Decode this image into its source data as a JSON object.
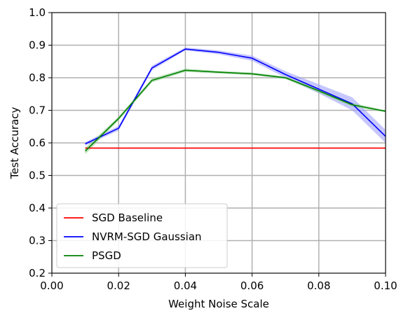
{
  "chart_data": {
    "type": "line",
    "title": "",
    "xlabel": "Weight Noise Scale",
    "ylabel": "Test Accuracy",
    "xlim": [
      0.0,
      0.1
    ],
    "ylim": [
      0.2,
      1.0
    ],
    "xticks": [
      0.0,
      0.02,
      0.04,
      0.06,
      0.08,
      0.1
    ],
    "xtick_labels": [
      "0.00",
      "0.02",
      "0.04",
      "0.06",
      "0.08",
      "0.10"
    ],
    "yticks": [
      0.2,
      0.3,
      0.4,
      0.5,
      0.6,
      0.7,
      0.8,
      0.9,
      1.0
    ],
    "ytick_labels": [
      "0.2",
      "0.3",
      "0.4",
      "0.5",
      "0.6",
      "0.7",
      "0.8",
      "0.9",
      "1.0"
    ],
    "grid": true,
    "legend_position": "lower-left",
    "series": [
      {
        "name": "SGD Baseline",
        "color": "#ff0000",
        "band_color": "#ff9999",
        "x": [
          0.01,
          0.02,
          0.03,
          0.04,
          0.05,
          0.06,
          0.07,
          0.08,
          0.09,
          0.1
        ],
        "y": [
          0.584,
          0.584,
          0.584,
          0.584,
          0.584,
          0.584,
          0.584,
          0.584,
          0.584,
          0.584
        ],
        "lower": [
          0.582,
          0.582,
          0.582,
          0.582,
          0.582,
          0.582,
          0.582,
          0.582,
          0.582,
          0.582
        ],
        "upper": [
          0.586,
          0.586,
          0.586,
          0.586,
          0.586,
          0.586,
          0.586,
          0.586,
          0.586,
          0.586
        ]
      },
      {
        "name": "NVRM-SGD Gaussian",
        "color": "#0000ff",
        "band_color": "#9999ff",
        "x": [
          0.01,
          0.02,
          0.03,
          0.04,
          0.05,
          0.06,
          0.07,
          0.08,
          0.09,
          0.1
        ],
        "y": [
          0.597,
          0.645,
          0.83,
          0.888,
          0.878,
          0.86,
          0.81,
          0.765,
          0.72,
          0.62
        ],
        "lower": [
          0.592,
          0.638,
          0.823,
          0.884,
          0.872,
          0.852,
          0.8,
          0.752,
          0.7,
          0.6
        ],
        "upper": [
          0.602,
          0.652,
          0.837,
          0.893,
          0.884,
          0.868,
          0.82,
          0.78,
          0.74,
          0.64
        ]
      },
      {
        "name": "PSGD",
        "color": "#008000",
        "band_color": "#88cc88",
        "x": [
          0.01,
          0.02,
          0.03,
          0.04,
          0.05,
          0.06,
          0.07,
          0.08,
          0.09,
          0.1
        ],
        "y": [
          0.575,
          0.675,
          0.792,
          0.823,
          0.817,
          0.812,
          0.8,
          0.76,
          0.717,
          0.697
        ],
        "lower": [
          0.565,
          0.669,
          0.786,
          0.818,
          0.813,
          0.808,
          0.796,
          0.754,
          0.711,
          0.694
        ],
        "upper": [
          0.585,
          0.681,
          0.798,
          0.828,
          0.821,
          0.816,
          0.804,
          0.766,
          0.723,
          0.7
        ]
      }
    ]
  }
}
